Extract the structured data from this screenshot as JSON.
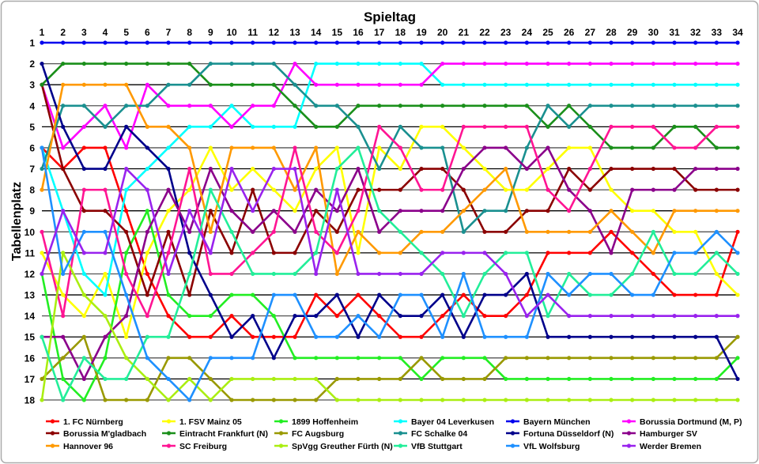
{
  "chart_data": {
    "type": "line",
    "title": "Spieltag",
    "xlabel": "Spieltag",
    "ylabel": "Tabellenplatz",
    "x": [
      1,
      2,
      3,
      4,
      5,
      6,
      7,
      8,
      9,
      10,
      11,
      12,
      13,
      14,
      15,
      16,
      17,
      18,
      19,
      20,
      21,
      22,
      23,
      24,
      25,
      26,
      27,
      28,
      29,
      30,
      31,
      32,
      33,
      34
    ],
    "y_ticks": [
      1,
      2,
      3,
      4,
      5,
      6,
      7,
      8,
      9,
      10,
      11,
      12,
      13,
      14,
      15,
      16,
      17,
      18
    ],
    "xlim": [
      1,
      34
    ],
    "ylim": [
      1,
      18
    ],
    "y_inverted": true,
    "grid": "horizontal",
    "legend_position": "bottom",
    "series": [
      {
        "name": "1. FC Nürnberg",
        "color": "#ff0000",
        "values": [
          6,
          7,
          6,
          6,
          9,
          12,
          14,
          15,
          15,
          14,
          15,
          15,
          15,
          13,
          14,
          13,
          14,
          15,
          15,
          14,
          13,
          14,
          14,
          13,
          11,
          11,
          11,
          10,
          11,
          12,
          13,
          13,
          13,
          10
        ]
      },
      {
        "name": "1. FSV Mainz 05",
        "color": "#ffff00",
        "values": [
          11,
          13,
          14,
          12,
          15,
          11,
          9,
          8,
          6,
          8,
          7,
          8,
          9,
          7,
          6,
          11,
          6,
          7,
          5,
          5,
          6,
          7,
          8,
          8,
          7,
          6,
          6,
          8,
          9,
          9,
          10,
          10,
          12,
          13
        ]
      },
      {
        "name": "1899 Hoffenheim",
        "color": "#22ee22",
        "values": [
          12,
          17,
          18,
          16,
          11,
          9,
          13,
          14,
          14,
          13,
          13,
          14,
          16,
          16,
          16,
          16,
          16,
          16,
          17,
          16,
          16,
          16,
          17,
          17,
          17,
          17,
          17,
          17,
          17,
          17,
          17,
          17,
          17,
          16
        ]
      },
      {
        "name": "Bayer 04 Leverkusen",
        "color": "#00ffff",
        "values": [
          6,
          9,
          12,
          13,
          8,
          7,
          6,
          5,
          5,
          4,
          5,
          5,
          5,
          2,
          2,
          2,
          2,
          2,
          2,
          3,
          3,
          3,
          3,
          3,
          3,
          3,
          3,
          3,
          3,
          3,
          3,
          3,
          3,
          3
        ]
      },
      {
        "name": "Bayern München",
        "color": "#0000ee",
        "values": [
          1,
          1,
          1,
          1,
          1,
          1,
          1,
          1,
          1,
          1,
          1,
          1,
          1,
          1,
          1,
          1,
          1,
          1,
          1,
          1,
          1,
          1,
          1,
          1,
          1,
          1,
          1,
          1,
          1,
          1,
          1,
          1,
          1,
          1
        ]
      },
      {
        "name": "Borussia Dortmund (M, P)",
        "color": "#ff00ff",
        "values": [
          3,
          6,
          5,
          4,
          6,
          3,
          4,
          4,
          4,
          5,
          4,
          4,
          2,
          3,
          3,
          3,
          3,
          3,
          3,
          2,
          2,
          2,
          2,
          2,
          2,
          2,
          2,
          2,
          2,
          2,
          2,
          2,
          2,
          2
        ]
      },
      {
        "name": "Borussia M'gladbach",
        "color": "#8b0000",
        "values": [
          3,
          7,
          9,
          9,
          10,
          13,
          10,
          13,
          9,
          11,
          8,
          11,
          11,
          9,
          10,
          8,
          8,
          8,
          7,
          7,
          8,
          10,
          10,
          9,
          9,
          7,
          8,
          7,
          7,
          7,
          7,
          8,
          8,
          8
        ]
      },
      {
        "name": "Eintracht Frankfurt (N)",
        "color": "#1a8f1a",
        "values": [
          3,
          2,
          2,
          2,
          2,
          2,
          2,
          2,
          3,
          3,
          3,
          3,
          4,
          5,
          5,
          4,
          4,
          4,
          4,
          4,
          4,
          4,
          4,
          4,
          5,
          4,
          5,
          6,
          6,
          6,
          5,
          5,
          6,
          6
        ]
      },
      {
        "name": "FC Augsburg",
        "color": "#999900",
        "values": [
          17,
          16,
          15,
          18,
          18,
          18,
          16,
          16,
          17,
          18,
          18,
          18,
          18,
          18,
          17,
          17,
          17,
          17,
          16,
          17,
          17,
          17,
          16,
          16,
          16,
          16,
          16,
          16,
          16,
          16,
          16,
          16,
          16,
          15
        ]
      },
      {
        "name": "FC Schalke 04",
        "color": "#1a9090",
        "values": [
          7,
          4,
          4,
          5,
          4,
          4,
          3,
          3,
          2,
          2,
          2,
          2,
          3,
          4,
          4,
          5,
          7,
          5,
          6,
          6,
          10,
          9,
          9,
          6,
          4,
          5,
          4,
          4,
          4,
          4,
          4,
          4,
          4,
          4
        ]
      },
      {
        "name": "Fortuna Düsseldorf (N)",
        "color": "#00008b",
        "values": [
          2,
          5,
          7,
          7,
          5,
          6,
          7,
          11,
          13,
          15,
          14,
          16,
          14,
          14,
          13,
          15,
          13,
          14,
          14,
          13,
          15,
          13,
          13,
          12,
          15,
          15,
          15,
          15,
          15,
          15,
          15,
          15,
          15,
          17
        ]
      },
      {
        "name": "Hamburger SV",
        "color": "#8b008b",
        "values": [
          15,
          15,
          17,
          15,
          14,
          10,
          8,
          10,
          7,
          9,
          10,
          9,
          10,
          8,
          9,
          7,
          10,
          9,
          9,
          9,
          7,
          6,
          6,
          7,
          6,
          8,
          9,
          11,
          8,
          8,
          8,
          7,
          7,
          7
        ]
      },
      {
        "name": "Hannover 96",
        "color": "#ff9900",
        "values": [
          8,
          3,
          3,
          3,
          3,
          5,
          5,
          6,
          10,
          6,
          6,
          6,
          8,
          6,
          12,
          10,
          11,
          11,
          10,
          10,
          9,
          8,
          7,
          10,
          10,
          10,
          10,
          9,
          10,
          11,
          9,
          9,
          9,
          9
        ]
      },
      {
        "name": "SC Freiburg",
        "color": "#ff1493",
        "values": [
          10,
          14,
          8,
          8,
          12,
          14,
          11,
          7,
          12,
          12,
          11,
          10,
          6,
          10,
          11,
          9,
          5,
          6,
          8,
          8,
          5,
          5,
          5,
          5,
          8,
          9,
          7,
          5,
          5,
          5,
          6,
          6,
          5,
          5
        ]
      },
      {
        "name": "SpVgg Greuther Fürth (N)",
        "color": "#aaee11",
        "values": [
          18,
          11,
          13,
          14,
          16,
          17,
          18,
          17,
          18,
          17,
          17,
          17,
          17,
          17,
          18,
          18,
          18,
          18,
          18,
          18,
          18,
          18,
          18,
          18,
          18,
          18,
          18,
          18,
          18,
          18,
          18,
          18,
          18,
          18
        ]
      },
      {
        "name": "VfB Stuttgart",
        "color": "#22ee99",
        "values": [
          15,
          18,
          16,
          17,
          17,
          15,
          15,
          12,
          8,
          10,
          12,
          12,
          12,
          11,
          7,
          6,
          9,
          10,
          11,
          12,
          14,
          12,
          11,
          11,
          14,
          12,
          13,
          13,
          12,
          10,
          12,
          12,
          11,
          12
        ]
      },
      {
        "name": "VfL Wolfsburg",
        "color": "#1e90ff",
        "values": [
          6,
          12,
          10,
          10,
          13,
          16,
          17,
          18,
          16,
          16,
          16,
          13,
          13,
          15,
          15,
          14,
          15,
          13,
          13,
          15,
          12,
          15,
          15,
          15,
          12,
          13,
          12,
          12,
          13,
          13,
          11,
          11,
          10,
          11
        ]
      },
      {
        "name": "Werder Bremen",
        "color": "#9922ee",
        "values": [
          12,
          9,
          11,
          11,
          7,
          8,
          12,
          9,
          11,
          7,
          9,
          7,
          7,
          12,
          8,
          12,
          12,
          12,
          12,
          11,
          11,
          11,
          12,
          14,
          13,
          14,
          14,
          14,
          14,
          14,
          14,
          14,
          14,
          14
        ]
      }
    ]
  }
}
